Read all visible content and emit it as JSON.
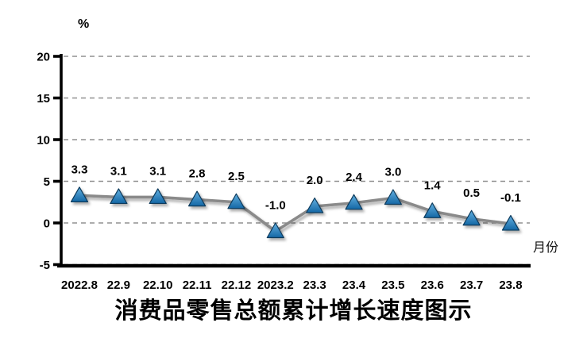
{
  "chart_data": {
    "type": "line",
    "title": "消费品零售总额累计增长速度图示",
    "unit_label": "%",
    "xaxis_label": "月份",
    "categories": [
      "2022.8",
      "22.9",
      "22.10",
      "22.11",
      "22.12",
      "2023.2",
      "23.3",
      "23.4",
      "23.5",
      "23.6",
      "23.7",
      "23.8"
    ],
    "values": [
      3.3,
      3.1,
      3.1,
      2.8,
      2.5,
      -1.0,
      2.0,
      2.4,
      3.0,
      1.4,
      0.5,
      -0.1
    ],
    "data_labels": [
      "3.3",
      "3.1",
      "3.1",
      "2.8",
      "2.5",
      "-1.0",
      "2.0",
      "2.4",
      "3.0",
      "1.4",
      "0.5",
      "-0.1"
    ],
    "y_ticks": [
      20,
      15,
      10,
      5,
      0,
      -5
    ],
    "ylim": [
      -5,
      20
    ],
    "grid": "horizontal-dashed",
    "legend": "none",
    "colors": {
      "marker_fill_top": "#63b0e0",
      "marker_fill_bottom": "#1467a5",
      "marker_stroke": "#0d3a5c",
      "line": "#8a8a8a",
      "grid": "#909090",
      "axis": "#000000",
      "text": "#000000"
    }
  }
}
